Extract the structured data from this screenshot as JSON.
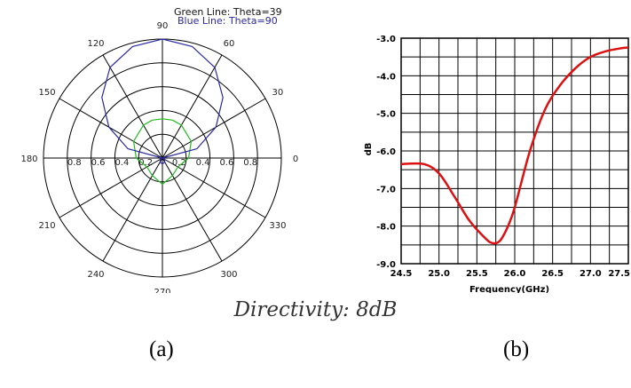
{
  "caption": "Directivity: 8dB",
  "subfigure_labels": [
    "(a)",
    "(b)"
  ],
  "chart_data": [
    {
      "type": "polar",
      "legend": [
        "Green Line: Theta=39",
        "Blue Line: Theta=90"
      ],
      "angle_tick_labels": [
        "90",
        "120",
        "150",
        "180",
        "210",
        "240",
        "270",
        "300",
        "330",
        "0",
        "30",
        "60"
      ],
      "radial_tick_labels": [
        "0.8",
        "0.6",
        "0.4",
        "0.2",
        "0.2",
        "0.4",
        "0.6",
        "0.8"
      ],
      "rlim": [
        0,
        1.0
      ],
      "grid": true,
      "series": [
        {
          "name": "Green Line: Theta=39",
          "color": "#22bb22",
          "angles_deg": [
            0,
            30,
            60,
            75,
            90,
            105,
            120,
            150,
            180,
            210,
            240,
            270,
            300,
            330
          ],
          "r": [
            0.22,
            0.28,
            0.32,
            0.33,
            0.33,
            0.33,
            0.32,
            0.28,
            0.22,
            0.15,
            0.17,
            0.22,
            0.17,
            0.15
          ]
        },
        {
          "name": "Blue Line: Theta=90",
          "color": "#2a2aa0",
          "angles_deg": [
            0,
            15,
            30,
            45,
            60,
            75,
            90,
            105,
            120,
            135,
            150,
            165,
            180,
            210,
            240,
            270,
            300,
            330
          ],
          "r": [
            0.0,
            0.3,
            0.52,
            0.72,
            0.88,
            0.97,
            1.0,
            0.97,
            0.88,
            0.72,
            0.52,
            0.3,
            0.0,
            0.02,
            0.04,
            0.05,
            0.04,
            0.02
          ]
        }
      ]
    },
    {
      "type": "line",
      "xlabel": "Frequency(GHz)",
      "ylabel": "dB",
      "xlim": [
        24.5,
        27.5
      ],
      "ylim": [
        -9.0,
        -3.0
      ],
      "x_tick_labels": [
        "24.5",
        "25.0",
        "25.5",
        "26.0",
        "26.5",
        "27.0",
        "27.5"
      ],
      "y_tick_labels": [
        "-3.0",
        "-4.0",
        "-5.0",
        "-6.0",
        "-7.0",
        "-8.0",
        "-9.0"
      ],
      "grid": true,
      "series": [
        {
          "color": "#dd1111",
          "x": [
            24.5,
            24.8,
            25.0,
            25.2,
            25.4,
            25.6,
            25.7,
            25.8,
            25.9,
            26.0,
            26.2,
            26.4,
            26.6,
            26.8,
            27.0,
            27.2,
            27.4,
            27.5
          ],
          "y": [
            -6.35,
            -6.35,
            -6.6,
            -7.2,
            -7.85,
            -8.3,
            -8.45,
            -8.4,
            -8.05,
            -7.5,
            -6.0,
            -4.9,
            -4.25,
            -3.8,
            -3.5,
            -3.35,
            -3.27,
            -3.25
          ]
        }
      ]
    }
  ]
}
